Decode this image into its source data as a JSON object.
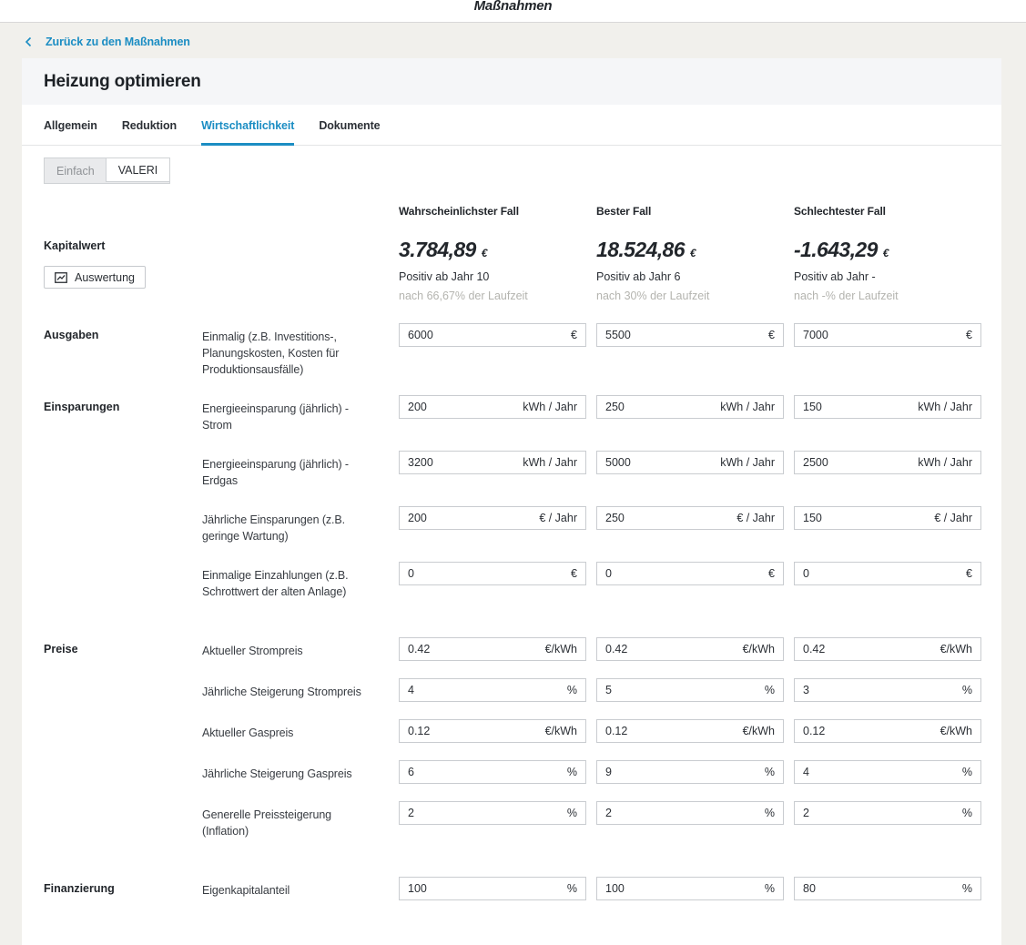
{
  "top_bar": {
    "title": "Maßnahmen"
  },
  "back_link": {
    "label": "Zurück zu den Maßnahmen"
  },
  "page": {
    "title": "Heizung optimieren"
  },
  "tabs": [
    {
      "label": "Allgemein",
      "active": false
    },
    {
      "label": "Reduktion",
      "active": false
    },
    {
      "label": "Wirtschaftlichkeit",
      "active": true
    },
    {
      "label": "Dokumente",
      "active": false
    }
  ],
  "mode_toggle": {
    "options": [
      {
        "label": "Einfach",
        "selected": false
      },
      {
        "label": "VALERI",
        "selected": true
      }
    ]
  },
  "columns": [
    "Wahrscheinlichster Fall",
    "Bester Fall",
    "Schlechtester Fall"
  ],
  "kapitalwert": {
    "section_label": "Kapitalwert",
    "button_label": "Auswertung",
    "cases": [
      {
        "value": "3.784,89",
        "currency": "€",
        "positive_ab": "Positiv ab Jahr 10",
        "laufzeit": "nach 66,67% der Laufzeit"
      },
      {
        "value": "18.524,86",
        "currency": "€",
        "positive_ab": "Positiv ab Jahr 6",
        "laufzeit": "nach 30% der Laufzeit"
      },
      {
        "value": "-1.643,29",
        "currency": "€",
        "positive_ab": "Positiv ab Jahr -",
        "laufzeit": "nach -% der Laufzeit"
      }
    ]
  },
  "sections": [
    {
      "label": "Ausgaben",
      "rows": [
        {
          "label": "Einmalig (z.B. Investitions-, Planungskosten, Kosten für Produktionsausfälle)",
          "unit": "€",
          "values": [
            "6000",
            "5500",
            "7000"
          ]
        }
      ]
    },
    {
      "label": "Einsparungen",
      "rows": [
        {
          "label": "Energieeinsparung (jährlich) - Strom",
          "unit": "kWh / Jahr",
          "values": [
            "200",
            "250",
            "150"
          ]
        },
        {
          "label": "Energieeinsparung (jährlich) - Erdgas",
          "unit": "kWh / Jahr",
          "values": [
            "3200",
            "5000",
            "2500"
          ]
        },
        {
          "label": "Jährliche Einsparungen (z.B. geringe Wartung)",
          "unit": "€ / Jahr",
          "values": [
            "200",
            "250",
            "150"
          ]
        },
        {
          "label": "Einmalige Einzahlungen (z.B. Schrottwert der alten Anlage)",
          "unit": "€",
          "values": [
            "0",
            "0",
            "0"
          ]
        }
      ]
    },
    {
      "label": "Preise",
      "rows": [
        {
          "label": "Aktueller Strompreis",
          "unit": "€/kWh",
          "values": [
            "0.42",
            "0.42",
            "0.42"
          ]
        },
        {
          "label": "Jährliche Steigerung Strompreis",
          "unit": "%",
          "values": [
            "4",
            "5",
            "3"
          ]
        },
        {
          "label": "Aktueller Gaspreis",
          "unit": "€/kWh",
          "values": [
            "0.12",
            "0.12",
            "0.12"
          ]
        },
        {
          "label": "Jährliche Steigerung Gaspreis",
          "unit": "%",
          "values": [
            "6",
            "9",
            "4"
          ]
        },
        {
          "label": "Generelle Preissteigerung (Inflation)",
          "unit": "%",
          "values": [
            "2",
            "2",
            "2"
          ]
        }
      ]
    },
    {
      "label": "Finanzierung",
      "rows": [
        {
          "label": "Eigenkapitalanteil",
          "unit": "%",
          "values": [
            "100",
            "100",
            "80"
          ]
        }
      ]
    }
  ],
  "colors": {
    "accent_blue": "#1b8dc3",
    "page_background": "#f1f0ec",
    "muted_gray": "#b4b4af"
  }
}
